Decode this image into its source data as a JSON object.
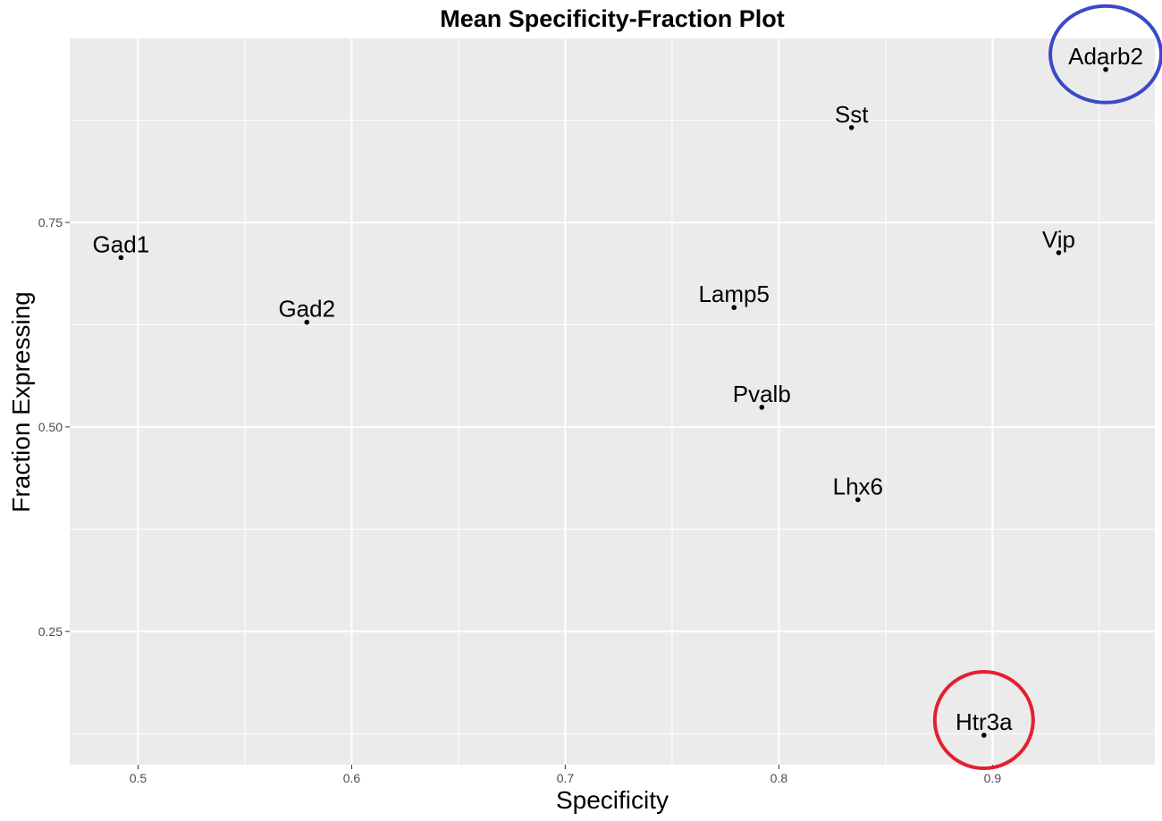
{
  "chart_data": {
    "type": "scatter",
    "title": "Mean Specificity-Fraction Plot",
    "xlabel": "Specificity",
    "ylabel": "Fraction Expressing",
    "xlim": [
      0.468,
      0.976
    ],
    "ylim": [
      0.087,
      0.975
    ],
    "x_ticks": [
      0.5,
      0.6,
      0.7,
      0.8,
      0.9
    ],
    "x_tick_labels": [
      "0.5",
      "0.6",
      "0.7",
      "0.8",
      "0.9"
    ],
    "y_ticks": [
      0.25,
      0.5,
      0.75
    ],
    "y_tick_labels": [
      "0.25",
      "0.50",
      "0.75"
    ],
    "x_minor_ticks": [
      0.55,
      0.65,
      0.75,
      0.85,
      0.95
    ],
    "y_minor_ticks": [
      0.125,
      0.375,
      0.625,
      0.875
    ],
    "grid": true,
    "panel_color": "#ebebeb",
    "grid_color": "#ffffff",
    "points": [
      {
        "label": "Gad1",
        "x": 0.492,
        "y": 0.707
      },
      {
        "label": "Gad2",
        "x": 0.579,
        "y": 0.628
      },
      {
        "label": "Lamp5",
        "x": 0.779,
        "y": 0.646
      },
      {
        "label": "Pvalb",
        "x": 0.792,
        "y": 0.524
      },
      {
        "label": "Sst",
        "x": 0.834,
        "y": 0.866
      },
      {
        "label": "Lhx6",
        "x": 0.837,
        "y": 0.411
      },
      {
        "label": "Htr3a",
        "x": 0.896,
        "y": 0.123
      },
      {
        "label": "Vip",
        "x": 0.931,
        "y": 0.713
      },
      {
        "label": "Adarb2",
        "x": 0.953,
        "y": 0.937
      }
    ],
    "highlights": [
      {
        "label": "Adarb2",
        "color": "#3b49c8"
      },
      {
        "label": "Htr3a",
        "color": "#e3212e"
      }
    ]
  }
}
